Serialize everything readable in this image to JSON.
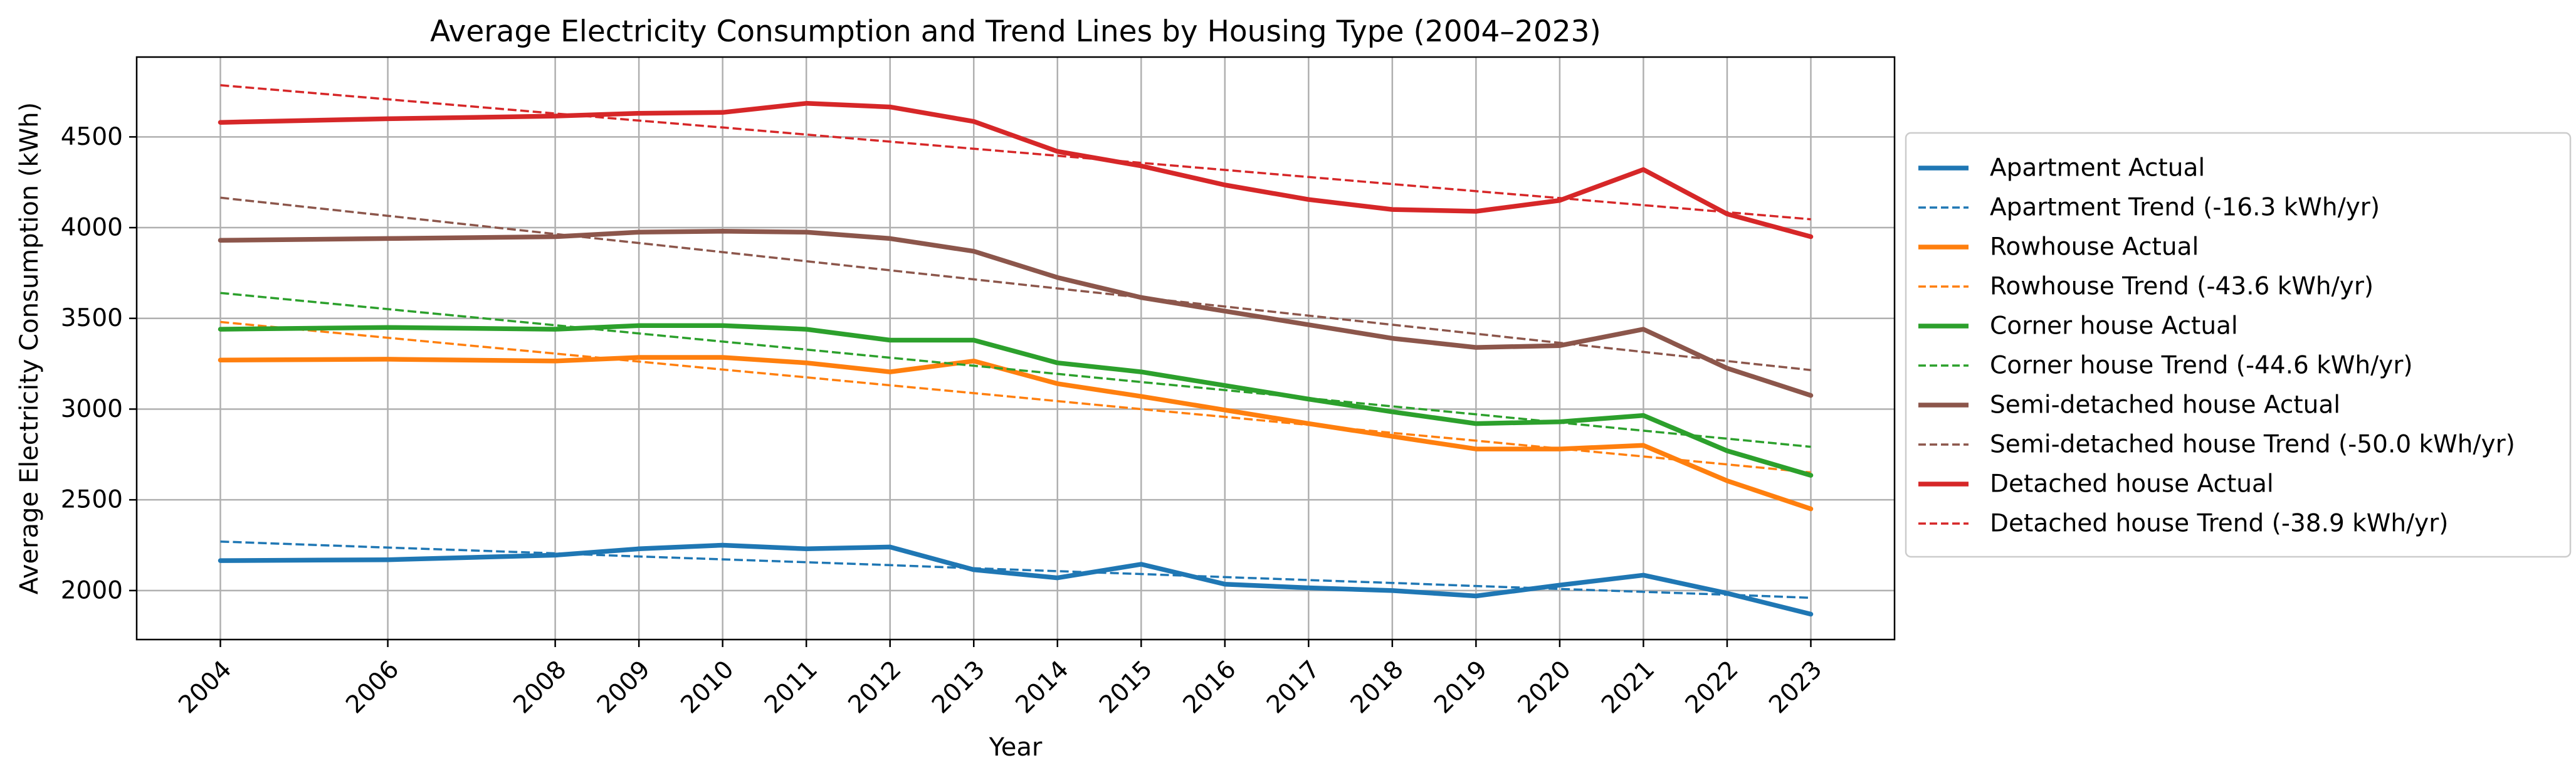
{
  "chart_data": {
    "type": "line",
    "title": "Average Electricity Consumption and Trend Lines by Housing Type (2004–2023)",
    "xlabel": "Year",
    "ylabel": "Average Electricity Consumption (kWh)",
    "x": [
      2004,
      2006,
      2008,
      2009,
      2010,
      2011,
      2012,
      2013,
      2014,
      2015,
      2016,
      2017,
      2018,
      2019,
      2020,
      2021,
      2022,
      2023
    ],
    "xlim": [
      2003,
      2024
    ],
    "ylim": [
      1730,
      4940
    ],
    "yticks": [
      2000,
      2500,
      3000,
      3500,
      4000,
      4500
    ],
    "grid": true,
    "legend_position": "center-right outside",
    "series": [
      {
        "name": "Apartment Actual",
        "kind": "actual",
        "color": "#1f77b4",
        "values": [
          2165,
          2170,
          2195,
          2230,
          2250,
          2230,
          2240,
          2115,
          2070,
          2145,
          2035,
          2015,
          2000,
          1970,
          2030,
          2085,
          1985,
          1870
        ]
      },
      {
        "name": "Apartment Trend (-16.3 kWh/yr)",
        "kind": "trend",
        "color": "#1f77b4",
        "values": [
          2270,
          2237,
          2205,
          2188,
          2172,
          2156,
          2140,
          2123,
          2107,
          2091,
          2074,
          2058,
          2042,
          2025,
          2009,
          1993,
          1977,
          1960
        ]
      },
      {
        "name": "Rowhouse Actual",
        "kind": "actual",
        "color": "#ff7f0e",
        "values": [
          3270,
          3275,
          3265,
          3285,
          3285,
          3255,
          3205,
          3265,
          3140,
          3070,
          2995,
          2920,
          2850,
          2780,
          2780,
          2800,
          2605,
          2450
        ]
      },
      {
        "name": "Rowhouse Trend (-43.6 kWh/yr)",
        "kind": "trend",
        "color": "#ff7f0e",
        "values": [
          3480,
          3393,
          3306,
          3262,
          3218,
          3175,
          3131,
          3088,
          3044,
          3000,
          2957,
          2913,
          2869,
          2826,
          2782,
          2739,
          2695,
          2651
        ]
      },
      {
        "name": "Corner house Actual",
        "kind": "actual",
        "color": "#2ca02c",
        "values": [
          3440,
          3450,
          3440,
          3460,
          3460,
          3440,
          3380,
          3380,
          3255,
          3205,
          3130,
          3055,
          2985,
          2920,
          2930,
          2965,
          2770,
          2635
        ]
      },
      {
        "name": "Corner house Trend (-44.6 kWh/yr)",
        "kind": "trend",
        "color": "#2ca02c",
        "values": [
          3640,
          3551,
          3462,
          3417,
          3372,
          3328,
          3283,
          3239,
          3194,
          3149,
          3105,
          3060,
          3015,
          2971,
          2926,
          2881,
          2837,
          2792
        ]
      },
      {
        "name": "Semi-detached house Actual",
        "kind": "actual",
        "color": "#8c564b",
        "values": [
          3930,
          3940,
          3950,
          3975,
          3980,
          3975,
          3940,
          3870,
          3725,
          3615,
          3540,
          3465,
          3390,
          3340,
          3350,
          3440,
          3225,
          3075
        ]
      },
      {
        "name": "Semi-detached house Trend (-50.0 kWh/yr)",
        "kind": "trend",
        "color": "#8c564b",
        "values": [
          4165,
          4065,
          3965,
          3915,
          3865,
          3815,
          3765,
          3715,
          3665,
          3615,
          3565,
          3515,
          3465,
          3415,
          3365,
          3315,
          3265,
          3215
        ]
      },
      {
        "name": "Detached house Actual",
        "kind": "actual",
        "color": "#d62728",
        "values": [
          4580,
          4600,
          4615,
          4630,
          4635,
          4685,
          4665,
          4585,
          4420,
          4340,
          4235,
          4155,
          4100,
          4090,
          4150,
          4320,
          4075,
          3950
        ]
      },
      {
        "name": "Detached house Trend (-38.9 kWh/yr)",
        "kind": "trend",
        "color": "#d62728",
        "values": [
          4785,
          4707,
          4629,
          4590,
          4552,
          4513,
          4474,
          4435,
          4396,
          4357,
          4318,
          4279,
          4240,
          4201,
          4163,
          4124,
          4085,
          4046
        ]
      }
    ]
  }
}
